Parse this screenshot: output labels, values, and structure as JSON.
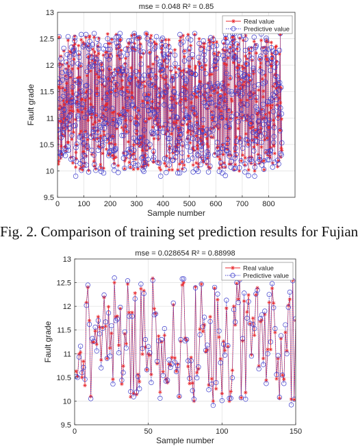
{
  "caption": "Fig. 2.   Comparison of training set prediction results for Fujian",
  "legend_icon_real": "red-asterisk-solid-line",
  "legend_icon_pred": "blue-circle-dotted-line",
  "colors": {
    "real": "#e8262b",
    "predictive": "#3d3dcc",
    "axis": "#333333",
    "grid": "#e2e2e2"
  },
  "chart_data": [
    {
      "type": "line",
      "title": "mse = 0.048 R² = 0.85",
      "xlabel": "Sample number",
      "ylabel": "Fault grade",
      "xlim": [
        0,
        900
      ],
      "ylim": [
        9.5,
        13
      ],
      "xticks": [
        0,
        100,
        200,
        300,
        400,
        500,
        600,
        700,
        800
      ],
      "yticks": [
        9.5,
        10,
        10.5,
        11,
        11.5,
        12,
        12.5,
        13
      ],
      "grid": true,
      "legend_position": "top-right",
      "n_points": 850,
      "seed": 7,
      "series": [
        {
          "name": "Real value",
          "marker": "asterisk",
          "color": "#e8262b",
          "style": "solid"
        },
        {
          "name": "Predictive value",
          "marker": "circle",
          "color": "#3d3dcc",
          "style": "dotted"
        }
      ]
    },
    {
      "type": "line",
      "title": "mse = 0.028654 R² = 0.88998",
      "xlabel": "Sample number",
      "ylabel": "Fault grade",
      "xlim": [
        0,
        150
      ],
      "ylim": [
        9.5,
        13
      ],
      "xticks": [
        0,
        50,
        100,
        150
      ],
      "yticks": [
        9.5,
        10,
        10.5,
        11,
        11.5,
        12,
        12.5,
        13
      ],
      "grid": true,
      "legend_position": "top-right",
      "n_points": 150,
      "seed": 21,
      "series": [
        {
          "name": "Real value",
          "marker": "asterisk",
          "color": "#e8262b",
          "style": "solid"
        },
        {
          "name": "Predictive value",
          "marker": "circle",
          "color": "#3d3dcc",
          "style": "dotted"
        }
      ]
    }
  ]
}
